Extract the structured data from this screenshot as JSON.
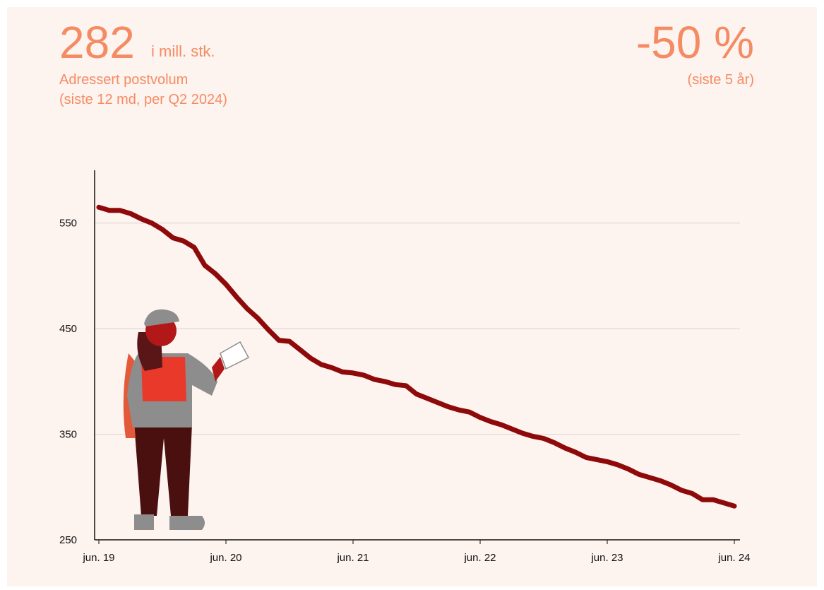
{
  "header": {
    "value": "282",
    "unit": "i mill. stk.",
    "label": "Adressert postvolum",
    "sublabel": "(siste 12 md, per Q2 2024)",
    "change": "-50 %",
    "change_label": "(siste 5 år)"
  },
  "chart_data": {
    "type": "line",
    "x": [
      0,
      1,
      2,
      3,
      4,
      5,
      6,
      7,
      8,
      9,
      10,
      11,
      12,
      13,
      14,
      15,
      16,
      17,
      18,
      19,
      20,
      21,
      22,
      23,
      24,
      25,
      26,
      27,
      28,
      29,
      30,
      31,
      32,
      33,
      34,
      35,
      36,
      37,
      38,
      39,
      40,
      41,
      42,
      43,
      44,
      45,
      46,
      47,
      48,
      49,
      50,
      51,
      52,
      53,
      54,
      55,
      56,
      57,
      58,
      59,
      60
    ],
    "series": [
      {
        "color": "#8e0a0a",
        "values": [
          565,
          562,
          562,
          559,
          554,
          550,
          544,
          536,
          533,
          527,
          510,
          502,
          492,
          480,
          469,
          460,
          449,
          439,
          438,
          430,
          422,
          416,
          413,
          409,
          408,
          406,
          402,
          400,
          397,
          396,
          388,
          384,
          380,
          376,
          373,
          371,
          366,
          362,
          359,
          355,
          351,
          348,
          346,
          342,
          337,
          333,
          328,
          326,
          324,
          321,
          317,
          312,
          309,
          306,
          302,
          297,
          294,
          288,
          288,
          285,
          282
        ]
      }
    ],
    "xlim": [
      0,
      60
    ],
    "xticks": [
      {
        "value": 0,
        "label": "jun. 19"
      },
      {
        "value": 12,
        "label": "jun. 20"
      },
      {
        "value": 24,
        "label": "jun. 21"
      },
      {
        "value": 36,
        "label": "jun. 22"
      },
      {
        "value": 48,
        "label": "jun. 23"
      },
      {
        "value": 60,
        "label": "jun. 24"
      }
    ],
    "ylim": [
      250,
      600
    ],
    "yticks": [
      250,
      350,
      450,
      550
    ],
    "grid": true
  }
}
